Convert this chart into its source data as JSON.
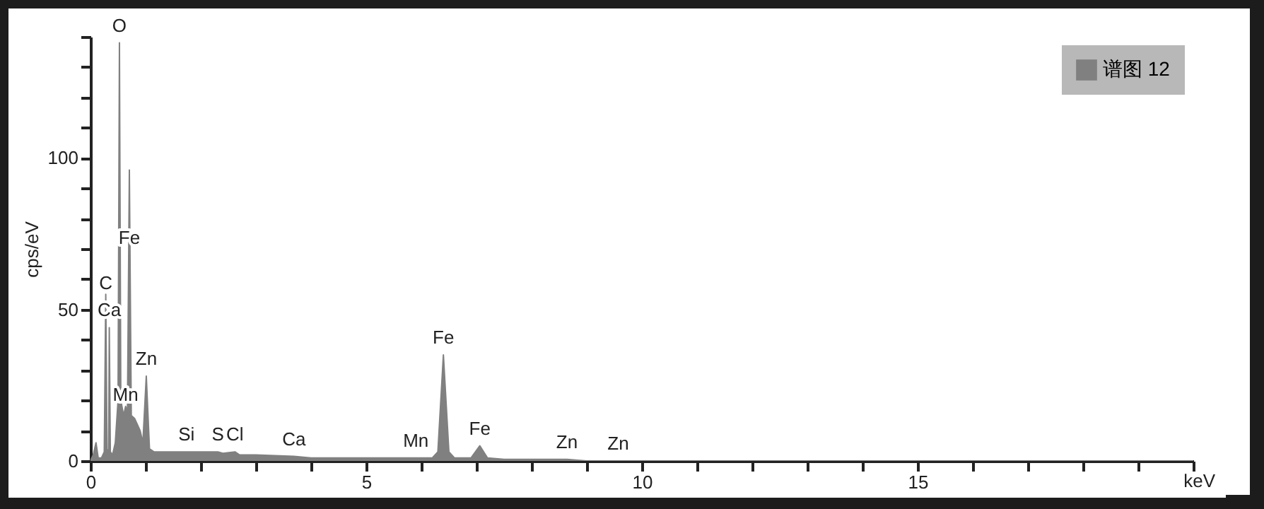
{
  "chart_data": {
    "type": "area",
    "xlabel": "keV",
    "ylabel": "cps/eV",
    "x": [
      0,
      0.05,
      0.1,
      0.14,
      0.2,
      0.25,
      0.277,
      0.3,
      0.33,
      0.341,
      0.36,
      0.4,
      0.45,
      0.5,
      0.525,
      0.55,
      0.6,
      0.637,
      0.67,
      0.705,
      0.74,
      0.8,
      0.9,
      0.95,
      1.012,
      1.07,
      1.15,
      1.3,
      1.5,
      1.74,
      1.8,
      2.0,
      2.31,
      2.4,
      2.62,
      2.7,
      3.0,
      3.69,
      4.0,
      5.0,
      5.9,
      6.2,
      6.3,
      6.4,
      6.5,
      6.6,
      6.9,
      7.06,
      7.2,
      7.5,
      8.0,
      8.64,
      9.0,
      9.57,
      10,
      12,
      15,
      20
    ],
    "series": [
      {
        "name": "谱图 12",
        "color": "#808080",
        "values": [
          0,
          2,
          6,
          1,
          1,
          3,
          55,
          4,
          2,
          44,
          3,
          2,
          6,
          20,
          138,
          20,
          15,
          18,
          16,
          96,
          15,
          14,
          10,
          6,
          28,
          4,
          3,
          3,
          3,
          3,
          3,
          3,
          3,
          2.5,
          3,
          2,
          2,
          1.5,
          1,
          1,
          1,
          1,
          3,
          35,
          3,
          1,
          1,
          5,
          1,
          0.5,
          0.5,
          0.5,
          0,
          0,
          0,
          0,
          0,
          0
        ]
      }
    ],
    "xlim": [
      0,
      20
    ],
    "xticks": [
      0,
      {
        "value": 1,
        "label": null
      },
      {
        "value": 2,
        "label": null
      },
      {
        "value": 3,
        "label": null
      },
      {
        "value": 4,
        "label": null
      },
      5,
      {
        "value": 6,
        "label": null
      },
      {
        "value": 7,
        "label": null
      },
      {
        "value": 8,
        "label": null
      },
      {
        "value": 9,
        "label": null
      },
      10,
      {
        "value": 11,
        "label": null
      },
      {
        "value": 12,
        "label": null
      },
      {
        "value": 13,
        "label": null
      },
      {
        "value": 14,
        "label": null
      },
      15,
      {
        "value": 16,
        "label": null
      },
      {
        "value": 17,
        "label": null
      },
      {
        "value": 18,
        "label": null
      },
      {
        "value": 19,
        "label": null
      },
      {
        "value": 20,
        "label": null
      }
    ],
    "ylim": [
      0,
      140
    ],
    "yticks": [
      0,
      {
        "value": 10,
        "label": null
      },
      {
        "value": 20,
        "label": null
      },
      {
        "value": 30,
        "label": null
      },
      {
        "value": 40,
        "label": null
      },
      50,
      {
        "value": 60,
        "label": null
      },
      {
        "value": 70,
        "label": null
      },
      {
        "value": 80,
        "label": null
      },
      {
        "value": 90,
        "label": null
      },
      100,
      {
        "value": 110,
        "label": null
      },
      {
        "value": 120,
        "label": null
      },
      {
        "value": 130,
        "label": null
      },
      {
        "value": 140,
        "label": null
      }
    ],
    "grid": false,
    "legend": "top right",
    "annotations": [
      {
        "text": "O",
        "x": 0.525,
        "y": 138
      },
      {
        "text": "Fe",
        "x": 0.705,
        "y": 68
      },
      {
        "text": "C",
        "x": 0.277,
        "y": 53
      },
      {
        "text": "Ca",
        "x": 0.341,
        "y": 44
      },
      {
        "text": "Zn",
        "x": 1.012,
        "y": 28
      },
      {
        "text": "Mn",
        "x": 0.637,
        "y": 16
      },
      {
        "text": "Si",
        "x": 1.74,
        "y": 3
      },
      {
        "text": "S",
        "x": 2.31,
        "y": 3
      },
      {
        "text": "Cl",
        "x": 2.62,
        "y": 3
      },
      {
        "text": "Ca",
        "x": 3.69,
        "y": 1.5
      },
      {
        "text": "Mn",
        "x": 5.9,
        "y": 1
      },
      {
        "text": "Fe",
        "x": 6.4,
        "y": 35
      },
      {
        "text": "Fe",
        "x": 7.06,
        "y": 5
      },
      {
        "text": "Zn",
        "x": 8.64,
        "y": 0.5
      },
      {
        "text": "Zn",
        "x": 9.57,
        "y": 0
      }
    ]
  }
}
